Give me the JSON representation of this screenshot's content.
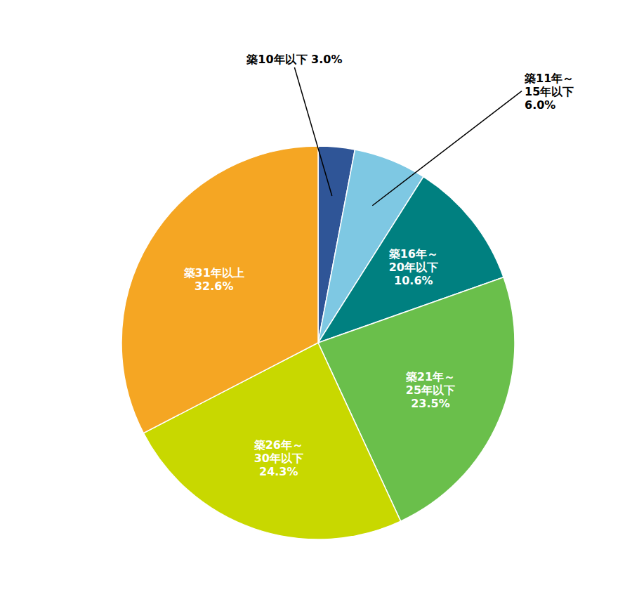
{
  "chart_data": {
    "type": "pie",
    "categories": [
      "築10年以下 3.0%",
      "築11年～\n15年以下\n6.0%",
      "築16年～\n20年以下\n10.6%",
      "築21年～\n25年以下\n23.5%",
      "築26年～\n30年以下\n24.3%",
      "築31年以上\n32.6%"
    ],
    "values": [
      3.0,
      6.0,
      10.6,
      23.5,
      24.3,
      32.6
    ],
    "colors": [
      "#2f5597",
      "#7ec8e3",
      "#008080",
      "#6abf4b",
      "#c8d800",
      "#f5a623"
    ],
    "data_labels": true
  }
}
